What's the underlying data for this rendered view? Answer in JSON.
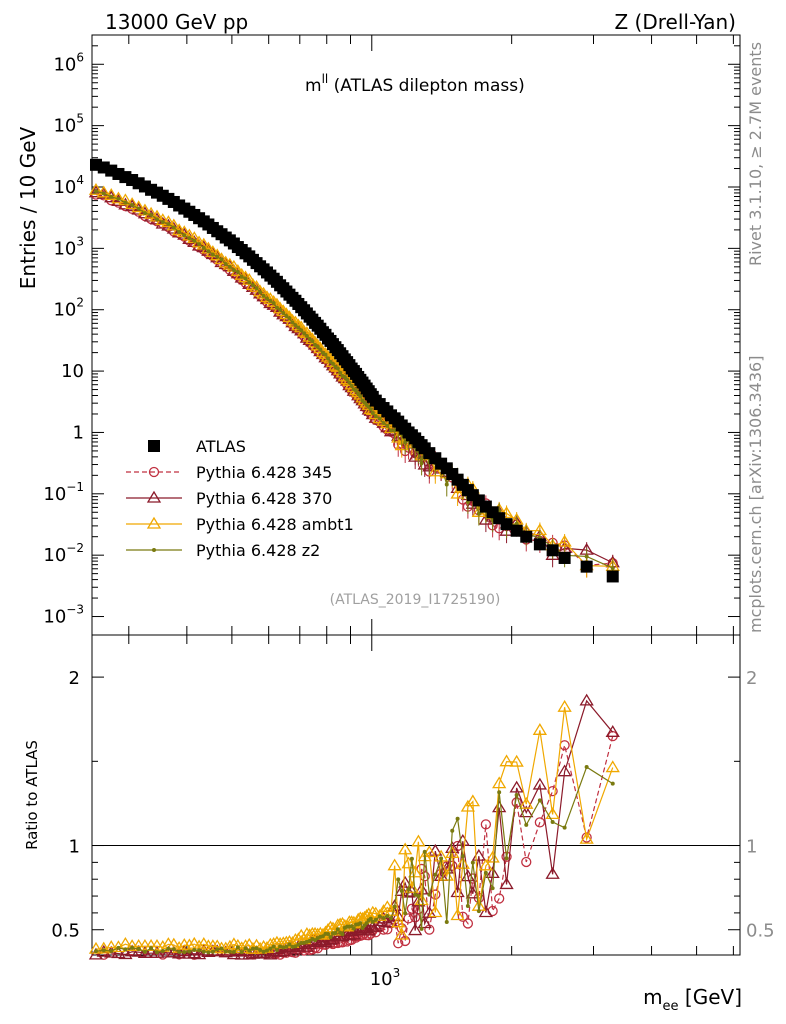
{
  "header": {
    "left": "13000 GeV pp",
    "right": "Z (Drell-Yan)"
  },
  "side_text": {
    "top": "Rivet 3.1.10, ≥ 2.7M events",
    "bottom": "mcplots.cern.ch [arXiv:1306.3436]"
  },
  "plot_title": {
    "symbol": "m",
    "superscript": "ll",
    "text": " (ATLAS dilepton mass)"
  },
  "reference": "(ATLAS_2019_I1725190)",
  "axes": {
    "ylabel_main": "Entries / 10 GeV",
    "ylabel_ratio": "Ratio to ATLAS",
    "xlabel_symbol": "m",
    "xlabel_sub": "ee",
    "xlabel_unit": " [GeV]",
    "x_tick_major": "10",
    "x_tick_major_sup": "3",
    "y_ticks_main": [
      {
        "value": 1000000,
        "base": "10",
        "sup": "6"
      },
      {
        "value": 100000,
        "base": "10",
        "sup": "5"
      },
      {
        "value": 10000,
        "base": "10",
        "sup": "4"
      },
      {
        "value": 1000,
        "base": "10",
        "sup": "3"
      },
      {
        "value": 100,
        "base": "10",
        "sup": "2"
      },
      {
        "value": 10,
        "base": "10",
        "sup": ""
      },
      {
        "value": 1,
        "base": "1",
        "sup": ""
      },
      {
        "value": 0.1,
        "base": "10",
        "sup": "−1"
      },
      {
        "value": 0.01,
        "base": "10",
        "sup": "−2"
      },
      {
        "value": 0.001,
        "base": "10",
        "sup": "−3"
      }
    ],
    "y_ticks_ratio": [
      "2",
      "1",
      "0.5"
    ]
  },
  "legend": [
    {
      "label": "ATLAS"
    },
    {
      "label": "Pythia 6.428 345"
    },
    {
      "label": "Pythia 6.428 370"
    },
    {
      "label": "Pythia 6.428 ambt1"
    },
    {
      "label": "Pythia 6.428 z2"
    }
  ],
  "chart_data": {
    "type": "scatter",
    "x_scale": "log",
    "xlim": [
      250,
      6200
    ],
    "ylim_main": [
      0.0005,
      3000000
    ],
    "ylim_ratio": [
      0.35,
      2.25
    ],
    "y_scale_main": "log",
    "grid": false,
    "legend_position": "lower-left",
    "series": [
      {
        "name": "ATLAS",
        "color": "#000000",
        "marker": "square",
        "x": [
          255,
          265,
          275,
          285,
          295,
          305,
          315,
          325,
          335,
          345,
          355,
          365,
          375,
          385,
          395,
          405,
          415,
          425,
          435,
          445,
          455,
          465,
          475,
          485,
          495,
          505,
          515,
          525,
          535,
          545,
          555,
          565,
          575,
          585,
          595,
          605,
          615,
          625,
          635,
          645,
          655,
          665,
          675,
          685,
          695,
          705,
          715,
          725,
          735,
          745,
          755,
          765,
          775,
          785,
          795,
          805,
          815,
          825,
          835,
          845,
          855,
          865,
          875,
          885,
          895,
          905,
          915,
          925,
          935,
          945,
          955,
          965,
          975,
          985,
          995,
          1005,
          1020,
          1040,
          1060,
          1080,
          1100,
          1120,
          1140,
          1160,
          1180,
          1200,
          1220,
          1240,
          1260,
          1280,
          1300,
          1330,
          1370,
          1410,
          1450,
          1490,
          1530,
          1570,
          1610,
          1650,
          1700,
          1760,
          1820,
          1880,
          1950,
          2050,
          2150,
          2300,
          2450,
          2600,
          2900,
          3300
        ],
        "y": [
          23000,
          20800,
          18500,
          16300,
          14500,
          13000,
          11500,
          10200,
          9000,
          8100,
          7200,
          6400,
          5700,
          5000,
          4450,
          3950,
          3500,
          3100,
          2750,
          2450,
          2150,
          1900,
          1700,
          1500,
          1350,
          1200,
          1050,
          940,
          830,
          740,
          650,
          575,
          510,
          455,
          405,
          360,
          320,
          285,
          250,
          224,
          198,
          176,
          156,
          140,
          124,
          110,
          98,
          87,
          77,
          69,
          61,
          55,
          49,
          43,
          39,
          34,
          31,
          27.5,
          24.5,
          22,
          19.5,
          17.5,
          15.5,
          14,
          12.5,
          11,
          10,
          9,
          8,
          7.2,
          6.5,
          5.8,
          5.2,
          4.7,
          4.2,
          3.8,
          3.3,
          2.9,
          2.5,
          2.2,
          1.9,
          1.7,
          1.5,
          1.3,
          1.15,
          1.0,
          0.9,
          0.8,
          0.7,
          0.62,
          0.55,
          0.46,
          0.38,
          0.31,
          0.26,
          0.21,
          0.17,
          0.14,
          0.115,
          0.095,
          0.078,
          0.062,
          0.05,
          0.04,
          0.032,
          0.025,
          0.02,
          0.015,
          0.012,
          0.009,
          0.0065,
          0.0045
        ]
      },
      {
        "name": "Pythia 6.428 345",
        "color": "#c03040",
        "marker": "circle-open",
        "dashed": true,
        "scale": 0.34
      },
      {
        "name": "Pythia 6.428 370",
        "color": "#8b1a2a",
        "marker": "triangle-open",
        "dashed": false,
        "scale": 0.36
      },
      {
        "name": "Pythia 6.428 ambt1",
        "color": "#f0a800",
        "marker": "triangle-open",
        "dashed": false,
        "scale": 0.4
      },
      {
        "name": "Pythia 6.428 z2",
        "color": "#7a7a10",
        "marker": "dot",
        "dashed": false,
        "scale": 0.38
      }
    ]
  }
}
